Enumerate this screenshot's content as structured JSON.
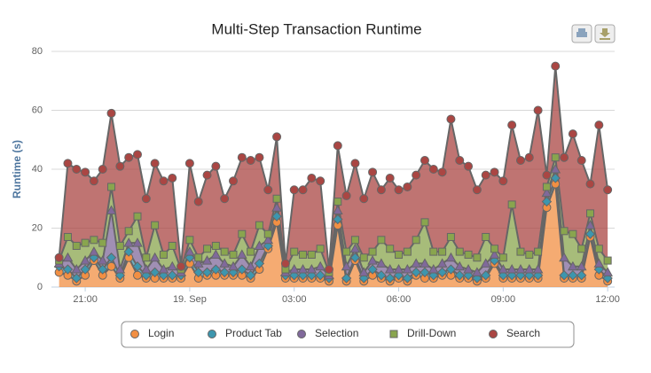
{
  "chart_data": {
    "type": "stacked-area",
    "title": "Multi-Step Transaction Runtime",
    "y_label": "Runtime (s)",
    "x": [
      20.25,
      20.5,
      20.75,
      21,
      21.25,
      21.5,
      21.75,
      22,
      22.25,
      22.5,
      22.75,
      23,
      23.25,
      23.5,
      23.75,
      24,
      24.25,
      24.5,
      24.75,
      25,
      25.25,
      25.5,
      25.75,
      26,
      26.25,
      26.5,
      26.75,
      27,
      27.25,
      27.5,
      27.75,
      28,
      28.25,
      28.5,
      28.75,
      29,
      29.25,
      29.5,
      29.75,
      30,
      30.25,
      30.5,
      30.75,
      31,
      31.25,
      31.5,
      31.75,
      32,
      32.25,
      32.5,
      32.75,
      33,
      33.25,
      33.5,
      33.75,
      34,
      34.25,
      34.5,
      34.75,
      35,
      35.25,
      35.5,
      35.75,
      36
    ],
    "xlim": [
      20.03,
      36.2
    ],
    "xticks": [
      {
        "value": 21,
        "label": "21:00"
      },
      {
        "value": 24,
        "label": "19. Sep"
      },
      {
        "value": 27,
        "label": "03:00"
      },
      {
        "value": 30,
        "label": "06:00"
      },
      {
        "value": 33,
        "label": "09:00"
      },
      {
        "value": 36,
        "label": "12:00"
      }
    ],
    "ylim": [
      0,
      80
    ],
    "yticks": [
      0,
      20,
      40,
      60,
      80
    ],
    "grid": true,
    "series": [
      {
        "name": "Login",
        "color": "#f28f43",
        "marker": "circle",
        "values": [
          5,
          4,
          2,
          4,
          9,
          4,
          7,
          3,
          10,
          4,
          3,
          3,
          3,
          3,
          3,
          8,
          3,
          4,
          4,
          4,
          4,
          4,
          3,
          6,
          13,
          22,
          3,
          3,
          3,
          3,
          3,
          2,
          21,
          2,
          9,
          2,
          4,
          3,
          2,
          3,
          2,
          4,
          3,
          3,
          4,
          4,
          3,
          3,
          2,
          3,
          8,
          3,
          3,
          3,
          3,
          3,
          27,
          35,
          3,
          3,
          3,
          17,
          4,
          2
        ]
      },
      {
        "name": "Product Tab",
        "color": "#3d96ae",
        "marker": "diamond",
        "values": [
          2,
          2,
          1,
          2,
          1,
          2,
          3,
          1,
          2,
          3,
          1,
          2,
          1,
          1,
          1,
          2,
          2,
          1,
          2,
          1,
          1,
          2,
          1,
          2,
          1,
          2,
          1,
          1,
          1,
          1,
          1,
          1,
          2,
          1,
          1,
          1,
          2,
          1,
          1,
          1,
          1,
          1,
          2,
          1,
          1,
          2,
          1,
          1,
          1,
          1,
          1,
          1,
          1,
          1,
          1,
          1,
          2,
          2,
          1,
          1,
          1,
          1,
          2,
          1
        ]
      },
      {
        "name": "Selection",
        "color": "#80699b",
        "marker": "triangle",
        "values": [
          1,
          4,
          3,
          3,
          2,
          3,
          16,
          2,
          3,
          8,
          2,
          5,
          2,
          3,
          1,
          2,
          3,
          4,
          5,
          3,
          2,
          5,
          3,
          6,
          2,
          3,
          1,
          2,
          2,
          2,
          3,
          1,
          3,
          4,
          3,
          2,
          3,
          4,
          3,
          2,
          3,
          3,
          3,
          2,
          3,
          4,
          3,
          2,
          2,
          4,
          2,
          2,
          2,
          2,
          2,
          2,
          3,
          3,
          6,
          3,
          3,
          3,
          2,
          2
        ]
      },
      {
        "name": "Drill-Down",
        "color": "#89a54e",
        "marker": "square",
        "values": [
          1,
          7,
          8,
          6,
          4,
          6,
          8,
          8,
          4,
          9,
          4,
          11,
          5,
          7,
          1,
          4,
          2,
          4,
          3,
          4,
          4,
          7,
          5,
          7,
          2,
          3,
          1,
          6,
          5,
          5,
          6,
          1,
          3,
          5,
          3,
          5,
          3,
          8,
          7,
          5,
          6,
          8,
          14,
          6,
          4,
          7,
          5,
          5,
          5,
          9,
          2,
          4,
          22,
          6,
          5,
          6,
          2,
          4,
          9,
          11,
          6,
          4,
          5,
          4
        ]
      },
      {
        "name": "Search",
        "color": "#aa4643",
        "marker": "circle",
        "values": [
          1,
          25,
          26,
          24,
          20,
          25,
          25,
          27,
          25,
          21,
          20,
          21,
          25,
          23,
          1,
          26,
          19,
          25,
          27,
          18,
          25,
          26,
          31,
          23,
          15,
          21,
          2,
          21,
          22,
          26,
          23,
          1,
          19,
          19,
          26,
          20,
          27,
          17,
          24,
          22,
          22,
          22,
          21,
          28,
          27,
          40,
          31,
          30,
          23,
          21,
          26,
          26,
          27,
          31,
          33,
          48,
          4,
          31,
          25,
          34,
          30,
          10,
          42,
          24
        ]
      }
    ]
  }
}
